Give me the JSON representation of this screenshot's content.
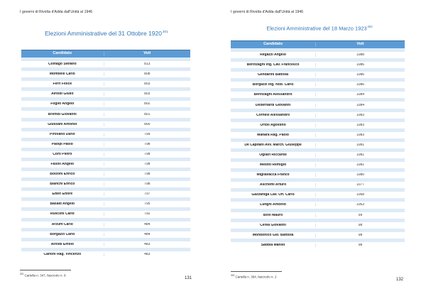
{
  "pages": [
    {
      "header": "I governi di Rivolta d'Adda dall'Unità al 1946",
      "title": "Elezioni Amministrative del 31 Ottobre 1920",
      "title_note": "301",
      "table": {
        "columns": [
          "Candidato",
          "Voti"
        ],
        "rows": [
          {
            "name": "Colnago Stefano",
            "votes": "813"
          },
          {
            "name": "Mombelli Carlo",
            "votes": "808"
          },
          {
            "name": "Ferri Felice",
            "votes": "803"
          },
          {
            "name": "Airoldi Giulio",
            "votes": "803"
          },
          {
            "name": "Foglio Angelo",
            "votes": "802"
          },
          {
            "name": "Brembi Giovanni",
            "votes": "801"
          },
          {
            "name": "Giussani Antonio",
            "votes": "800"
          },
          {
            "name": "Pirovano Dario",
            "votes": "799"
          },
          {
            "name": "Paolpi Paolo",
            "votes": "798"
          },
          {
            "name": "Corti Pietro",
            "votes": "798"
          },
          {
            "name": "Fasoli Angelo",
            "votes": "798"
          },
          {
            "name": "Bolzoni Enrico",
            "votes": "798"
          },
          {
            "name": "Bianchi Enrico",
            "votes": "798"
          },
          {
            "name": "Etteri Ettore",
            "votes": "797"
          },
          {
            "name": "Basalti Angelo",
            "votes": "795"
          },
          {
            "name": "Rusconi Carlo",
            "votes": "792"
          },
          {
            "name": "Arzuffi Carlo",
            "votes": "484"
          },
          {
            "name": "Borgazzi Carlo",
            "votes": "484"
          },
          {
            "name": "Airoldi Emilio",
            "votes": "483"
          },
          {
            "name": "Carioni Rag. Vincenzo",
            "votes": "483"
          }
        ]
      },
      "footnote": {
        "marker": "301",
        "text": "Cartella n. 347, fascicolo n. 9"
      },
      "page_number": "131"
    },
    {
      "header": "I governi di Rivolta d'Adda dall'Unità al 1946",
      "title": "Elezioni Amministrative del 18 Marzo 1923",
      "title_note": "302",
      "table": {
        "columns": [
          "Candidato",
          "Voti"
        ],
        "rows": [
          {
            "name": "Regazzi Angelo",
            "votes": "1088"
          },
          {
            "name": "Berinzaghi Ing. Cav. Francesco",
            "votes": "1086"
          },
          {
            "name": "Gendarini Battista",
            "votes": "1086"
          },
          {
            "name": "Borgazzi Ing. Nob. Carlo",
            "votes": "1086"
          },
          {
            "name": "Berinzaghi Alessandro",
            "votes": "1084"
          },
          {
            "name": "Debernardi Giovanni",
            "votes": "1084"
          },
          {
            "name": "Cornelli Alessandro",
            "votes": "1083"
          },
          {
            "name": "Ortoli Agostino",
            "votes": "1083"
          },
          {
            "name": "Manara Rag. Paolo",
            "votes": "1083"
          },
          {
            "name": "De Capitani Avv. March. Giuseppe",
            "votes": "1081"
          },
          {
            "name": "Ogliari Riccardo",
            "votes": "1081"
          },
          {
            "name": "Melotti Remigio",
            "votes": "1081"
          },
          {
            "name": "Migliavacca Franco",
            "votes": "1080"
          },
          {
            "name": "Aschemi Arturo",
            "votes": "1077"
          },
          {
            "name": "Gazzaniga Cav. Uff. Carlo",
            "votes": "1068"
          },
          {
            "name": "Lunghi Antonio",
            "votes": "1063"
          },
          {
            "name": "Bovi Mauro",
            "votes": "99"
          },
          {
            "name": "Cerea Giovanni",
            "votes": "98"
          },
          {
            "name": "Mondonico Gio. Battista",
            "votes": "98"
          },
          {
            "name": "Sabbia Manlio",
            "votes": "98"
          }
        ]
      },
      "footnote": {
        "marker": "302",
        "text": "Cartella n. 364, fascicolo n. 2"
      },
      "page_number": "132"
    }
  ],
  "colors": {
    "table_header": "#5B9BD5",
    "table_header_border": "#41719C",
    "row_band": "#DEEBF7",
    "title_blue": "#2E75B6"
  }
}
